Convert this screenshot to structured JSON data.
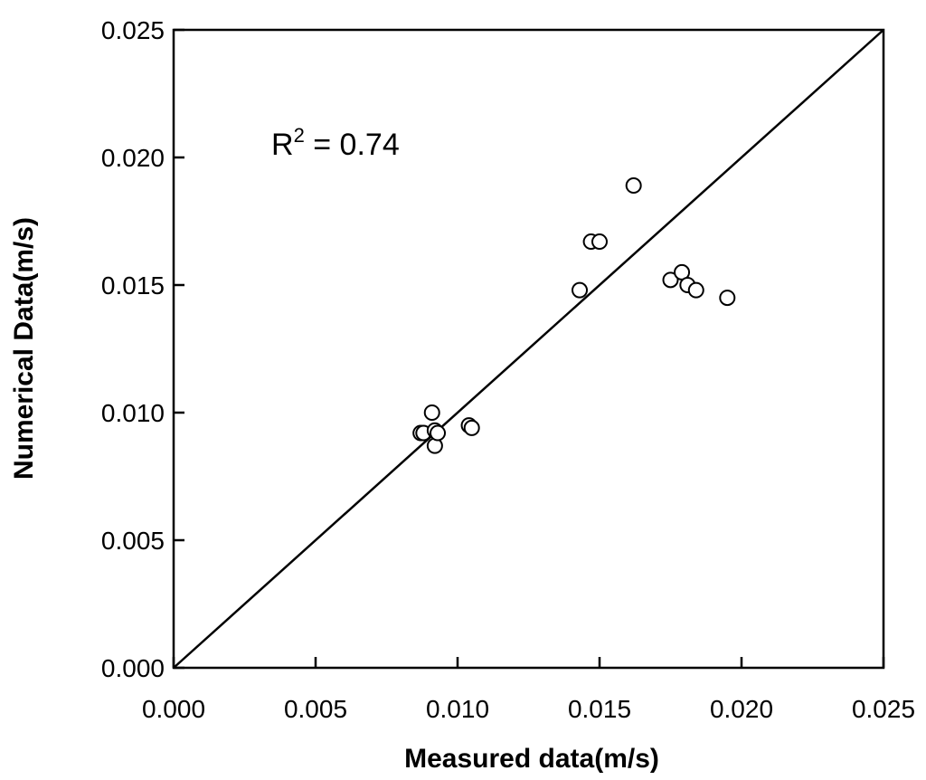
{
  "chart_data": {
    "type": "scatter",
    "xlabel": "Measured data(m/s)",
    "ylabel": "Numerical Data(m/s)",
    "xlim": [
      0,
      0.025
    ],
    "ylim": [
      0,
      0.025
    ],
    "x_ticks": [
      "0.000",
      "0.005",
      "0.010",
      "0.015",
      "0.020",
      "0.025"
    ],
    "y_ticks": [
      "0.000",
      "0.005",
      "0.010",
      "0.015",
      "0.020",
      "0.025"
    ],
    "grid": false,
    "legend": "none",
    "annotation": {
      "base": "R",
      "superscript": "2",
      "rest": " = 0.74"
    },
    "reference_line": {
      "x": [
        0,
        0.025
      ],
      "y": [
        0,
        0.025
      ]
    },
    "points": [
      {
        "x": 0.0087,
        "y": 0.0092
      },
      {
        "x": 0.0088,
        "y": 0.0092
      },
      {
        "x": 0.0091,
        "y": 0.01
      },
      {
        "x": 0.0092,
        "y": 0.0087
      },
      {
        "x": 0.0092,
        "y": 0.0093
      },
      {
        "x": 0.0093,
        "y": 0.0092
      },
      {
        "x": 0.0104,
        "y": 0.0095
      },
      {
        "x": 0.0105,
        "y": 0.0094
      },
      {
        "x": 0.0143,
        "y": 0.0148
      },
      {
        "x": 0.0147,
        "y": 0.0167
      },
      {
        "x": 0.015,
        "y": 0.0167
      },
      {
        "x": 0.0162,
        "y": 0.0189
      },
      {
        "x": 0.0175,
        "y": 0.0152
      },
      {
        "x": 0.0179,
        "y": 0.0155
      },
      {
        "x": 0.0181,
        "y": 0.015
      },
      {
        "x": 0.0184,
        "y": 0.0148
      },
      {
        "x": 0.0195,
        "y": 0.0145
      }
    ]
  }
}
